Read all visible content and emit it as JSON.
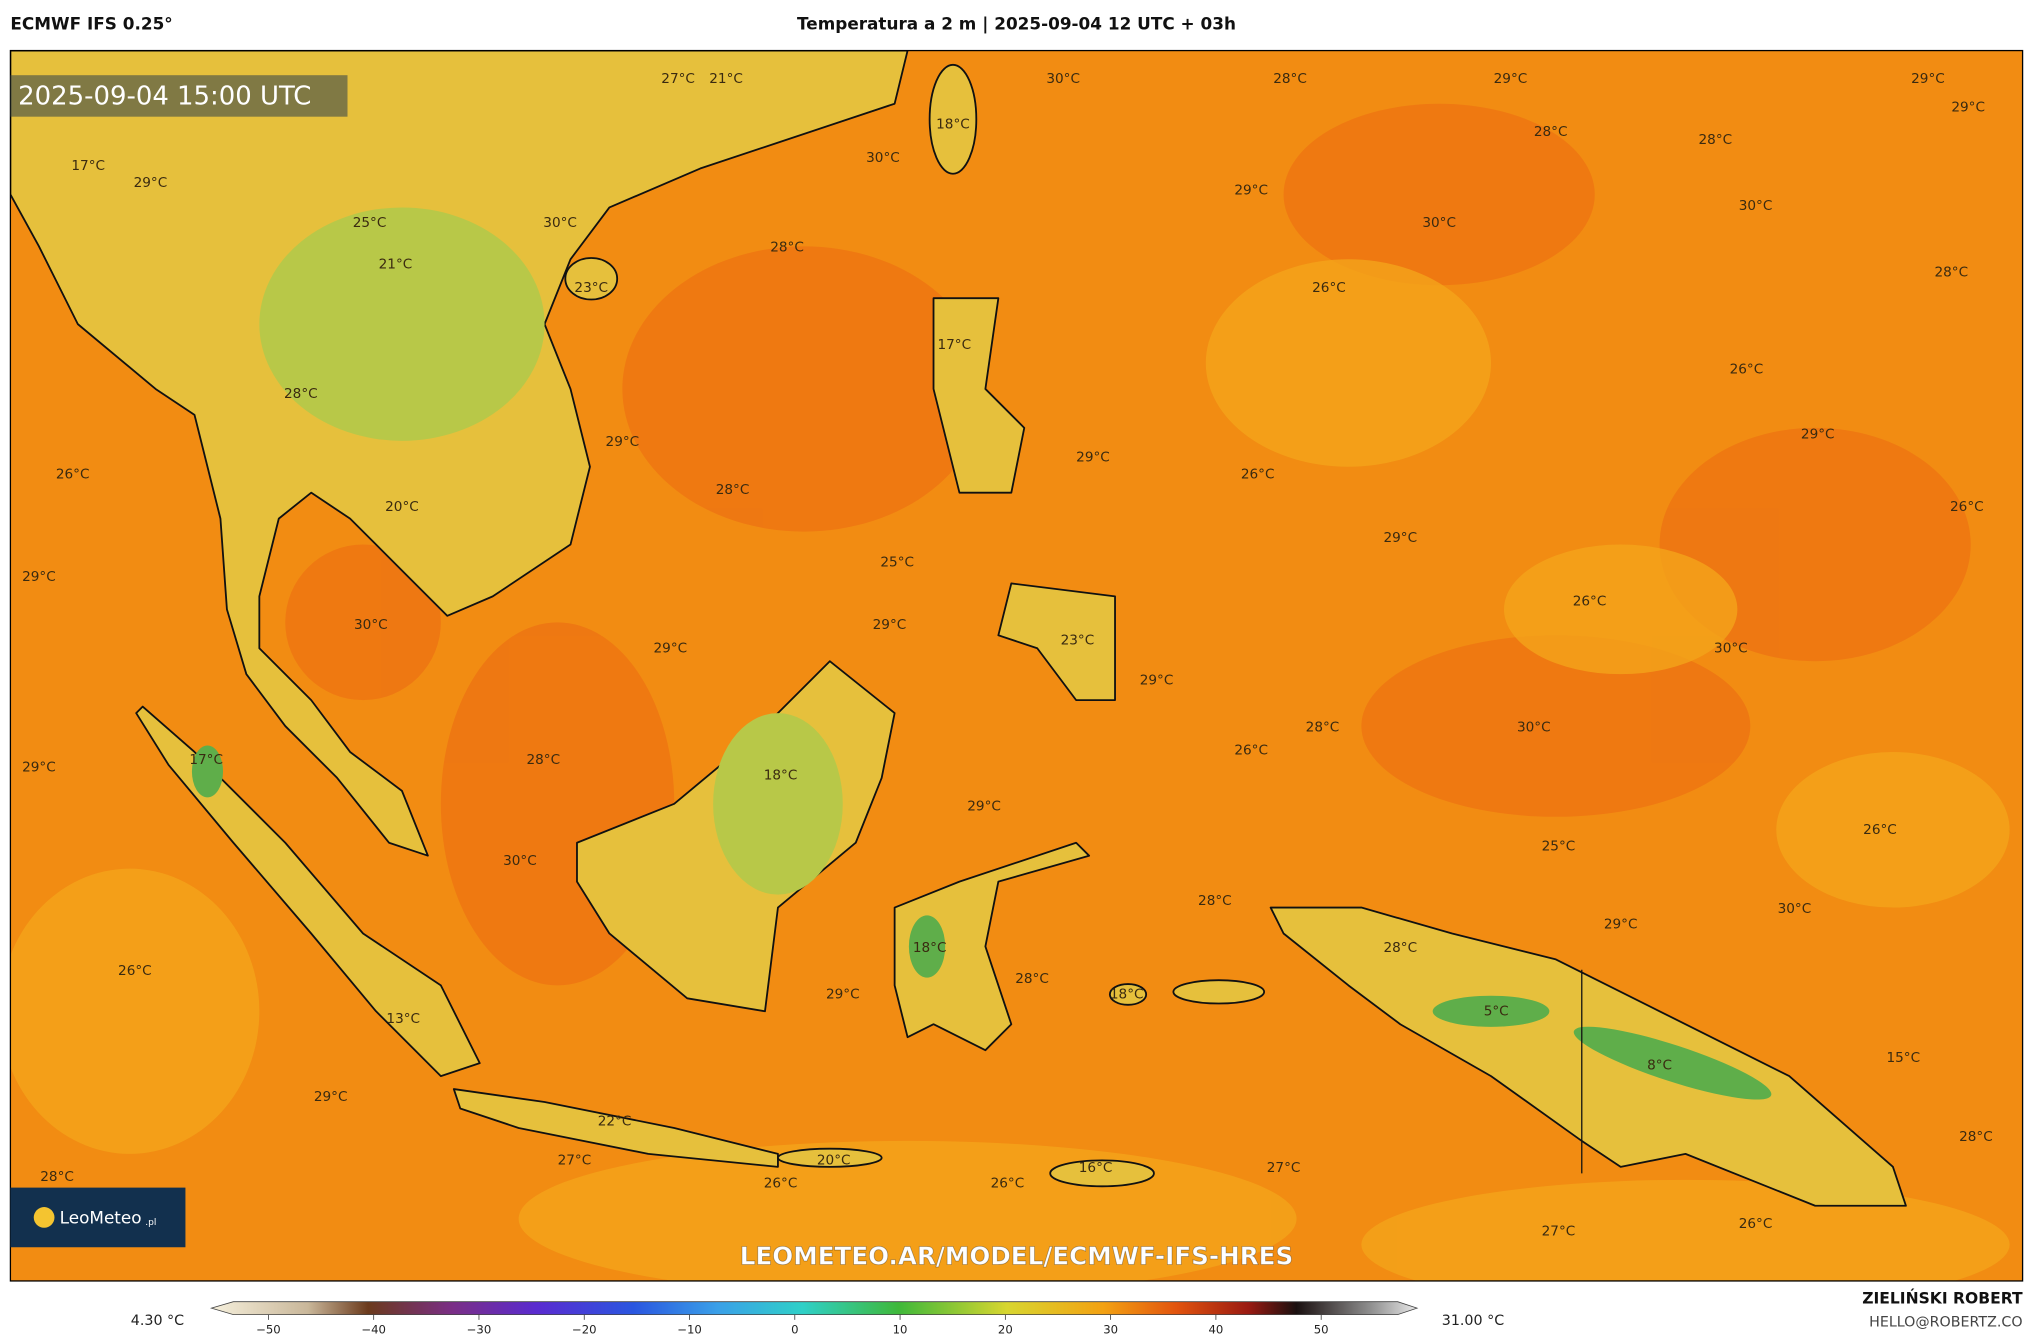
{
  "header": {
    "model": "ECMWF IFS 0.25°",
    "title": "Temperatura a 2 m | 2025-09-04 12 UTC + 03h"
  },
  "map": {
    "timestamp": "2025-09-04 15:00 UTC",
    "watermark": "LEOMETEO.AR/MODEL/ECMWF-IFS-HRES",
    "logo": "LeoMeteo",
    "logo_suffix": ".pl",
    "labels": [
      "27°C",
      "21°C",
      "30°C",
      "28°C",
      "29°C",
      "29°C",
      "29°C",
      "18°C",
      "28°C",
      "28°C",
      "17°C",
      "29°C",
      "30°C",
      "29°C",
      "30°C",
      "25°C",
      "30°C",
      "30°C",
      "28°C",
      "21°C",
      "28°C",
      "23°C",
      "26°C",
      "17°C",
      "26°C",
      "28°C",
      "29°C",
      "29°C",
      "29°C",
      "26°C",
      "26°C",
      "28°C",
      "20°C",
      "26°C",
      "29°C",
      "29°C",
      "25°C",
      "26°C",
      "30°C",
      "29°C",
      "29°C",
      "23°C",
      "30°C",
      "29°C",
      "28°C",
      "30°C",
      "26°C",
      "17°C",
      "28°C",
      "29°C",
      "18°C",
      "29°C",
      "26°C",
      "25°C",
      "30°C",
      "28°C",
      "30°C",
      "29°C",
      "28°C",
      "18°C",
      "26°C",
      "28°C",
      "18°C",
      "29°C",
      "5°C",
      "13°C",
      "8°C",
      "15°C",
      "29°C",
      "22°C",
      "28°C",
      "27°C",
      "20°C",
      "16°C",
      "27°C",
      "28°C",
      "26°C",
      "26°C",
      "27°C",
      "26°C"
    ]
  },
  "colorbar": {
    "min": "4.30 °C",
    "max": "31.00 °C",
    "ticks": [
      "−50",
      "−40",
      "−30",
      "−20",
      "−10",
      "0",
      "10",
      "20",
      "30",
      "40",
      "50"
    ]
  },
  "credits": {
    "author": "ZIELIŃSKI ROBERT",
    "email": "HELLO@ROBERTZ.CO"
  }
}
